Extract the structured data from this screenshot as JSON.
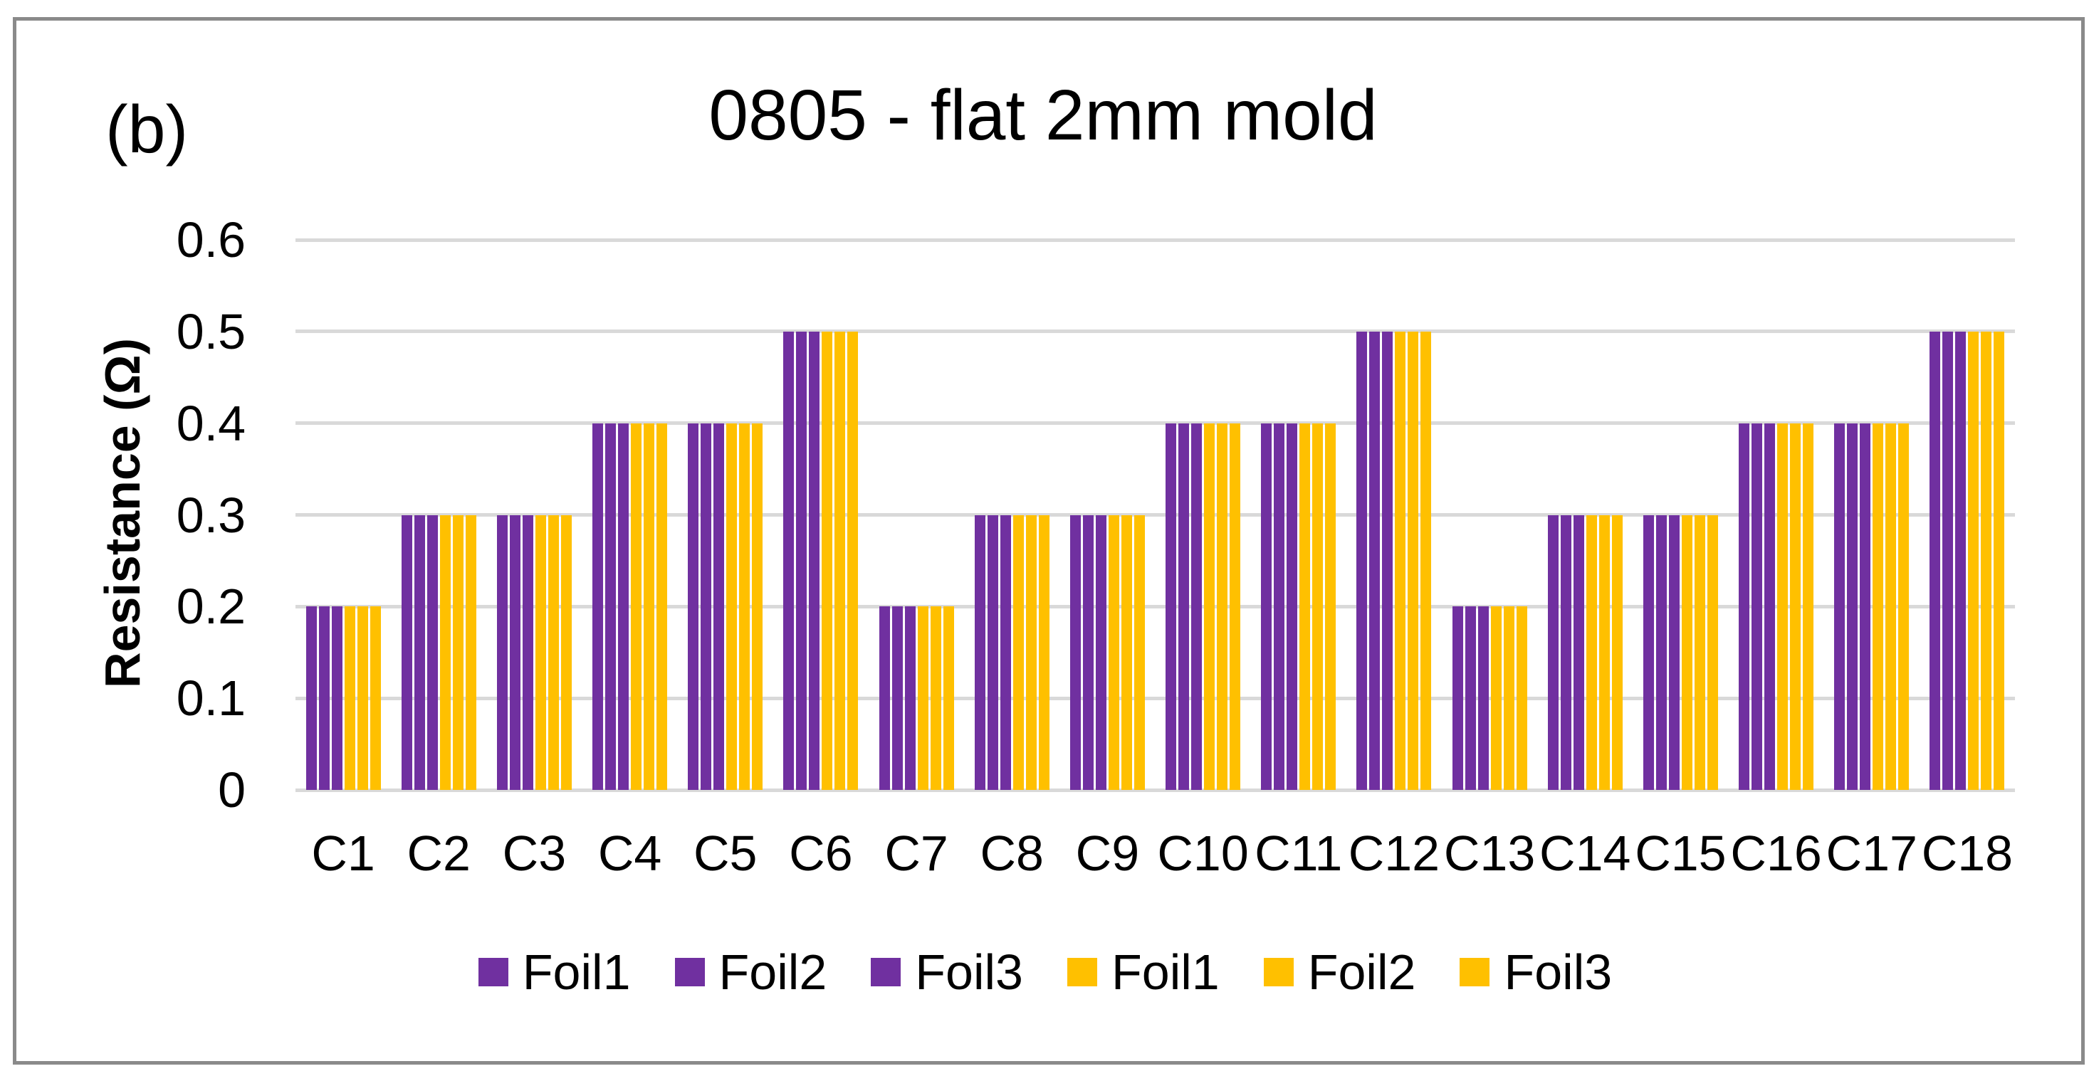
{
  "panel_label": "(b)",
  "title": "0805 - flat 2mm mold",
  "y_axis": {
    "label": "Resistance (Ω)",
    "tick_labels": [
      "0",
      "0.1",
      "0.2",
      "0.3",
      "0.4",
      "0.5",
      "0.6"
    ]
  },
  "colors": {
    "purple": "#7030A0",
    "gold": "#FFC000",
    "gridline": "#D9D9D9",
    "frame_border": "#8A8A8A",
    "text": "#000000"
  },
  "chart_data": {
    "type": "bar",
    "title": "0805 - flat 2mm mold",
    "xlabel": "",
    "ylabel": "Resistance (Ω)",
    "ylim": [
      0,
      0.6
    ],
    "yticks": [
      0,
      0.1,
      0.2,
      0.3,
      0.4,
      0.5,
      0.6
    ],
    "grid": "horizontal",
    "legend_position": "bottom",
    "categories": [
      "C1",
      "C2",
      "C3",
      "C4",
      "C5",
      "C6",
      "C7",
      "C8",
      "C9",
      "C10",
      "C11",
      "C12",
      "C13",
      "C14",
      "C15",
      "C16",
      "C17",
      "C18"
    ],
    "series": [
      {
        "name": "Foil1",
        "color": "#7030A0",
        "values": [
          0.2,
          0.3,
          0.3,
          0.4,
          0.4,
          0.5,
          0.2,
          0.3,
          0.3,
          0.4,
          0.4,
          0.5,
          0.2,
          0.3,
          0.3,
          0.4,
          0.4,
          0.5
        ]
      },
      {
        "name": "Foil2",
        "color": "#7030A0",
        "values": [
          0.2,
          0.3,
          0.3,
          0.4,
          0.4,
          0.5,
          0.2,
          0.3,
          0.3,
          0.4,
          0.4,
          0.5,
          0.2,
          0.3,
          0.3,
          0.4,
          0.4,
          0.5
        ]
      },
      {
        "name": "Foil3",
        "color": "#7030A0",
        "values": [
          0.2,
          0.3,
          0.3,
          0.4,
          0.4,
          0.5,
          0.2,
          0.3,
          0.3,
          0.4,
          0.4,
          0.5,
          0.2,
          0.3,
          0.3,
          0.4,
          0.4,
          0.5
        ]
      },
      {
        "name": "Foil1",
        "color": "#FFC000",
        "values": [
          0.2,
          0.3,
          0.3,
          0.4,
          0.4,
          0.5,
          0.2,
          0.3,
          0.3,
          0.4,
          0.4,
          0.5,
          0.2,
          0.3,
          0.3,
          0.4,
          0.4,
          0.5
        ]
      },
      {
        "name": "Foil2",
        "color": "#FFC000",
        "values": [
          0.2,
          0.3,
          0.3,
          0.4,
          0.4,
          0.5,
          0.2,
          0.3,
          0.3,
          0.4,
          0.4,
          0.5,
          0.2,
          0.3,
          0.3,
          0.4,
          0.4,
          0.5
        ]
      },
      {
        "name": "Foil3",
        "color": "#FFC000",
        "values": [
          0.2,
          0.3,
          0.3,
          0.4,
          0.4,
          0.5,
          0.2,
          0.3,
          0.3,
          0.4,
          0.4,
          0.5,
          0.2,
          0.3,
          0.3,
          0.4,
          0.4,
          0.5
        ]
      }
    ],
    "legend": [
      {
        "label": "Foil1",
        "color": "#7030A0"
      },
      {
        "label": "Foil2",
        "color": "#7030A0"
      },
      {
        "label": "Foil3",
        "color": "#7030A0"
      },
      {
        "label": "Foil1",
        "color": "#FFC000"
      },
      {
        "label": "Foil2",
        "color": "#FFC000"
      },
      {
        "label": "Foil3",
        "color": "#FFC000"
      }
    ]
  }
}
